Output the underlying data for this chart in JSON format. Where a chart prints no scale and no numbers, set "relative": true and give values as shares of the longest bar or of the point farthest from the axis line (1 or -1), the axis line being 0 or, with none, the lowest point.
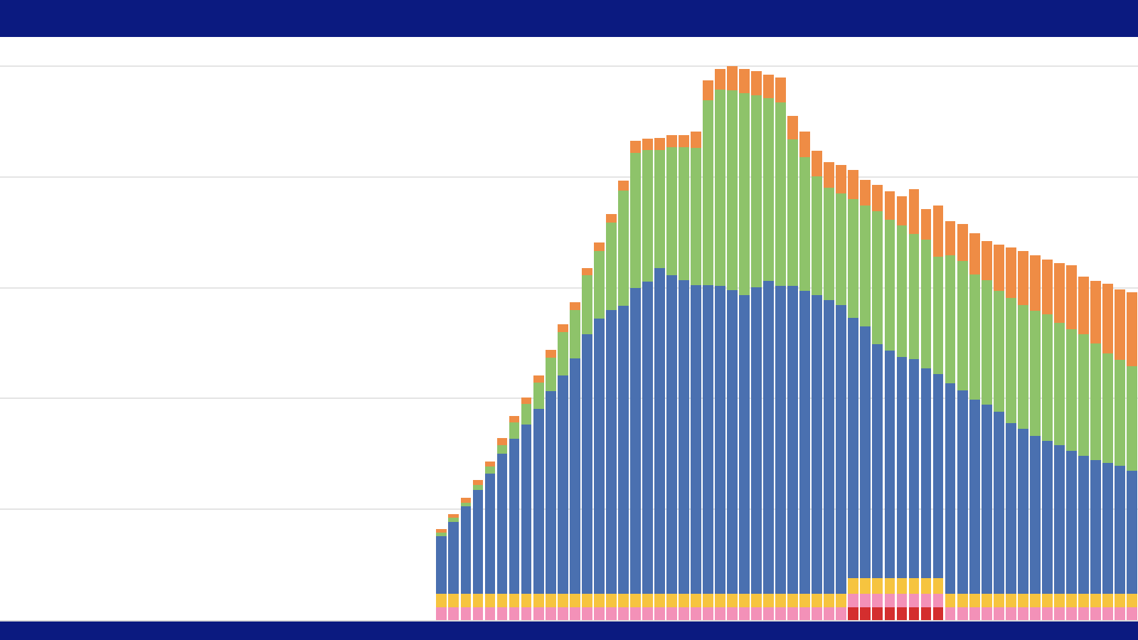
{
  "chart_data": {
    "type": "bar",
    "stacked": true,
    "relative": true,
    "grid": "y",
    "categories": [
      null,
      null,
      null,
      null,
      null,
      null,
      null,
      null,
      null,
      null,
      null,
      null,
      null,
      null,
      null,
      null,
      null,
      null,
      null,
      null,
      null,
      null,
      null,
      null,
      null,
      null,
      null,
      null,
      null,
      null,
      null,
      null,
      null,
      null,
      null,
      null,
      null,
      null,
      null,
      null,
      null,
      null,
      null,
      null,
      null,
      null,
      null,
      null,
      null,
      null,
      null,
      null,
      null,
      null,
      null,
      null,
      null,
      null
    ],
    "series": [
      {
        "color": "#d42e2e",
        "values": [
          null,
          null,
          null,
          null,
          null,
          null,
          null,
          null,
          null,
          null,
          null,
          null,
          null,
          null,
          null,
          null,
          null,
          null,
          null,
          null,
          null,
          null,
          null,
          null,
          null,
          null,
          null,
          null,
          null,
          null,
          null,
          null,
          null,
          null,
          0.023,
          0.023,
          0.023,
          0.023,
          0.023,
          0.023,
          0.023,
          0.023,
          null,
          null,
          null,
          null,
          null,
          null,
          null,
          null,
          null,
          null,
          null,
          null,
          null,
          null,
          null,
          null
        ]
      },
      {
        "color": "#f391b8",
        "values": [
          0.023,
          0.023,
          0.023,
          0.023,
          0.023,
          0.023,
          0.023,
          0.023,
          0.023,
          0.023,
          0.023,
          0.023,
          0.023,
          0.023,
          0.023,
          0.023,
          0.023,
          0.023,
          0.023,
          0.023,
          0.023,
          0.023,
          0.023,
          0.023,
          0.023,
          0.023,
          0.023,
          0.023,
          0.023,
          0.023,
          0.023,
          0.023,
          0.023,
          0.023,
          0.025,
          0.025,
          0.025,
          0.025,
          0.025,
          0.025,
          0.025,
          0.025,
          0.023,
          0.023,
          0.023,
          0.023,
          0.023,
          0.023,
          0.023,
          0.023,
          0.023,
          0.023,
          0.023,
          0.023,
          0.023,
          0.023,
          0.023,
          0.023
        ]
      },
      {
        "color": "#f6c43f",
        "values": [
          0.025,
          0.025,
          0.025,
          0.025,
          0.025,
          0.025,
          0.025,
          0.025,
          0.025,
          0.025,
          0.025,
          0.025,
          0.025,
          0.025,
          0.025,
          0.025,
          0.025,
          0.025,
          0.025,
          0.025,
          0.025,
          0.025,
          0.025,
          0.025,
          0.025,
          0.025,
          0.025,
          0.025,
          0.025,
          0.025,
          0.025,
          0.025,
          0.025,
          0.025,
          0.028,
          0.028,
          0.028,
          0.028,
          0.028,
          0.028,
          0.028,
          0.028,
          0.025,
          0.025,
          0.025,
          0.025,
          0.025,
          0.025,
          0.025,
          0.025,
          0.025,
          0.025,
          0.025,
          0.025,
          0.025,
          0.025,
          0.025,
          0.025
        ]
      },
      {
        "color": "#4a70b0",
        "values": [
          0.103,
          0.129,
          0.157,
          0.187,
          0.217,
          0.252,
          0.279,
          0.305,
          0.333,
          0.366,
          0.394,
          0.424,
          0.468,
          0.496,
          0.512,
          0.519,
          0.552,
          0.563,
          0.587,
          0.575,
          0.566,
          0.557,
          0.557,
          0.555,
          0.548,
          0.539,
          0.553,
          0.564,
          0.555,
          0.555,
          0.546,
          0.539,
          0.53,
          0.521,
          0.47,
          0.454,
          0.422,
          0.41,
          0.399,
          0.395,
          0.378,
          0.368,
          0.379,
          0.367,
          0.35,
          0.341,
          0.328,
          0.307,
          0.297,
          0.285,
          0.276,
          0.268,
          0.258,
          0.249,
          0.241,
          0.236,
          0.231,
          0.221
        ]
      },
      {
        "color": "#8ec36a",
        "values": [
          0.007,
          0.009,
          0.007,
          0.009,
          0.012,
          0.016,
          0.03,
          0.037,
          0.048,
          0.06,
          0.078,
          0.088,
          0.106,
          0.122,
          0.157,
          0.208,
          0.244,
          0.237,
          0.214,
          0.231,
          0.24,
          0.247,
          0.334,
          0.355,
          0.36,
          0.364,
          0.346,
          0.33,
          0.332,
          0.265,
          0.242,
          0.214,
          0.203,
          0.201,
          0.214,
          0.219,
          0.24,
          0.237,
          0.237,
          0.226,
          0.233,
          0.212,
          0.231,
          0.233,
          0.226,
          0.224,
          0.219,
          0.226,
          0.224,
          0.226,
          0.228,
          0.221,
          0.219,
          0.219,
          0.21,
          0.198,
          0.191,
          0.189
        ]
      },
      {
        "color": "#ef8c45",
        "values": [
          0.006,
          0.005,
          0.009,
          0.009,
          0.009,
          0.012,
          0.012,
          0.012,
          0.012,
          0.014,
          0.014,
          0.014,
          0.014,
          0.016,
          0.016,
          0.018,
          0.021,
          0.021,
          0.021,
          0.021,
          0.021,
          0.03,
          0.035,
          0.037,
          0.044,
          0.044,
          0.044,
          0.042,
          0.044,
          0.042,
          0.046,
          0.046,
          0.046,
          0.051,
          0.053,
          0.046,
          0.048,
          0.051,
          0.053,
          0.081,
          0.055,
          0.092,
          0.062,
          0.067,
          0.074,
          0.071,
          0.083,
          0.092,
          0.097,
          0.099,
          0.099,
          0.108,
          0.115,
          0.104,
          0.113,
          0.125,
          0.127,
          0.134
        ]
      }
    ]
  }
}
